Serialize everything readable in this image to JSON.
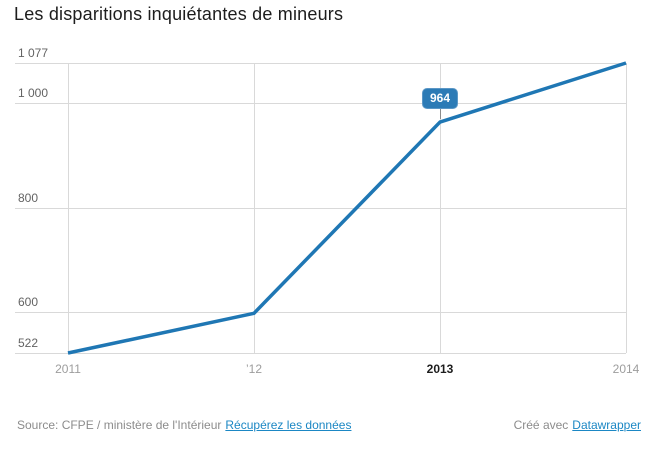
{
  "title": "Les disparitions inquiétantes de mineurs",
  "chart_data": {
    "type": "line",
    "x": [
      2011,
      2012,
      2013,
      2014
    ],
    "x_tick_labels": [
      "2011",
      "’12",
      "2013",
      "2014"
    ],
    "emphasized_x_tick": "2013",
    "values": [
      522,
      598,
      964,
      1077
    ],
    "y_ticks": [
      {
        "value": 1077,
        "label": "1 077"
      },
      {
        "value": 1000,
        "label": "1 000"
      },
      {
        "value": 800,
        "label": "800"
      },
      {
        "value": 600,
        "label": "600"
      },
      {
        "value": 522,
        "label": "522"
      }
    ],
    "ylim": [
      522,
      1077
    ],
    "highlight": {
      "index": 2,
      "label": "964"
    },
    "grid": "horizontal-and-vertical",
    "legend": "none",
    "title": "Les disparitions inquiétantes de mineurs",
    "xlabel": "",
    "ylabel": "",
    "line_color": "#1f77b4",
    "badge_color": "#2c7bb6"
  },
  "footer": {
    "source_text": "Source: CFPE / ministère de l'Intérieur",
    "source_link": "Récupérez les données",
    "credit_text": "Créé avec",
    "credit_link": "Datawrapper"
  },
  "colors": {
    "link": "#1b87c4",
    "grid": "#d9d9d9"
  }
}
